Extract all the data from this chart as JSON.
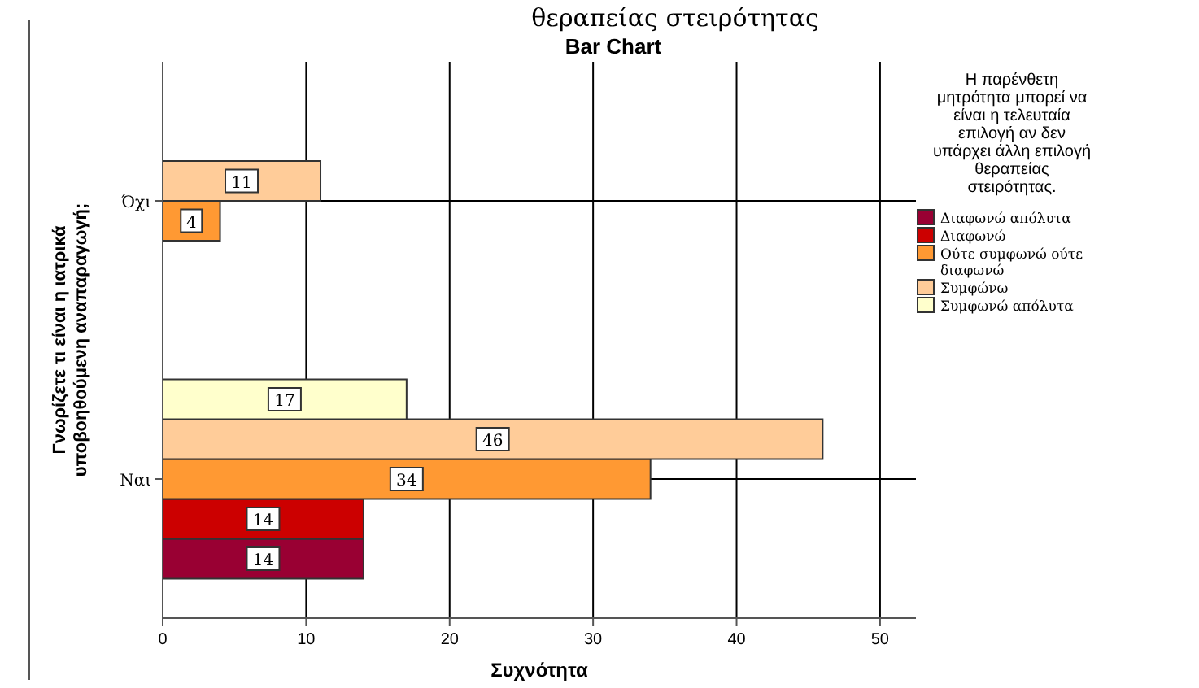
{
  "chart_data": {
    "type": "bar",
    "orientation": "horizontal",
    "title": "θεραπείας στειρότητας",
    "subtitle": "Bar Chart",
    "xlabel": "Συχνότητα",
    "ylabel": "Γνωρίζετε τι είναι η ιατρικά υποβοηθούμενη αναπαραγωγή;",
    "legend_title": "Η παρένθετη μητρότητα μπορεί να είναι η τελευταία επιλογή αν δεν υπάρχει άλλη επιλογή θεραπείας στειρότητας.",
    "categories": [
      "Όχι",
      "Ναι"
    ],
    "series": [
      {
        "name": "Διαφωνώ απόλυτα",
        "color": "#990033",
        "values": [
          null,
          14
        ]
      },
      {
        "name": "Διαφωνώ",
        "color": "#cc0000",
        "values": [
          null,
          14
        ]
      },
      {
        "name": "Ούτε συμφωνώ ούτε διαφωνώ",
        "color": "#ff9933",
        "values": [
          4,
          34
        ]
      },
      {
        "name": "Συμφώνω",
        "color": "#ffcc99",
        "values": [
          11,
          46
        ]
      },
      {
        "name": "Συμφωνώ απόλυτα",
        "color": "#ffffcc",
        "values": [
          null,
          17
        ]
      }
    ],
    "xlim": [
      0,
      52.5
    ],
    "xticks": [
      0,
      10,
      20,
      30,
      40,
      50
    ],
    "grid": true,
    "legend": "right",
    "data_labels": true
  }
}
